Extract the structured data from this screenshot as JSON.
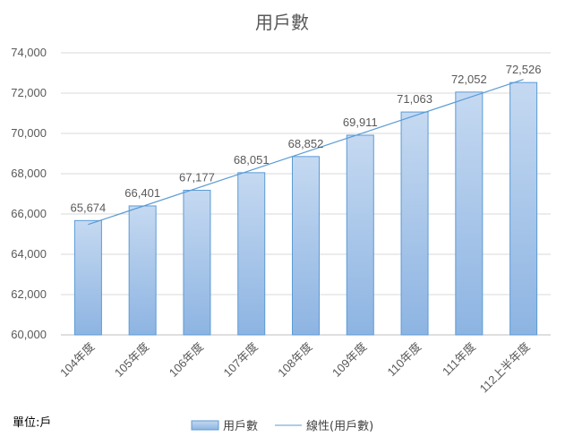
{
  "chart_data": {
    "type": "bar",
    "title": "用戶數",
    "categories": [
      "104年度",
      "105年度",
      "106年度",
      "107年度",
      "108年度",
      "109年度",
      "110年度",
      "111年度",
      "112上半年度"
    ],
    "series": [
      {
        "name": "用戶數",
        "values": [
          65674,
          66401,
          67177,
          68051,
          68852,
          69911,
          71063,
          72052,
          72526
        ]
      }
    ],
    "value_labels": [
      "65,674",
      "66,401",
      "67,177",
      "68,051",
      "68,852",
      "69,911",
      "71,063",
      "72,052",
      "72,526"
    ],
    "trendline": {
      "name": "線性(用戶數)",
      "type": "linear"
    },
    "ylim": [
      60000,
      74000
    ],
    "yticks": [
      60000,
      62000,
      64000,
      66000,
      68000,
      70000,
      72000,
      74000
    ],
    "ytick_labels": [
      "60,000",
      "62,000",
      "64,000",
      "66,000",
      "68,000",
      "70,000",
      "72,000",
      "74,000"
    ],
    "grid": true,
    "legend_position": "bottom",
    "colors": {
      "bar_top": "#c5d9f1",
      "bar_bottom": "#8db4e2",
      "bar_border": "#5b9bd5",
      "trendline": "#5b9bd5",
      "grid": "#d9d9d9"
    }
  },
  "unit_label": "單位:戶"
}
